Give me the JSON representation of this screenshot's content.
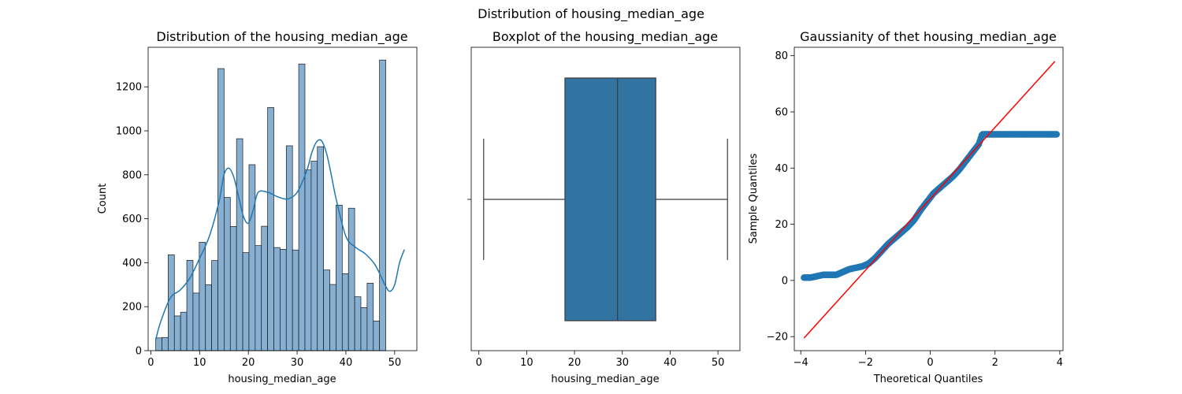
{
  "figure": {
    "title": "Distribution of housing_median_age"
  },
  "colors": {
    "bar": "#86afd2",
    "kde": "#1f77b4",
    "box": "#3274a1",
    "qq_points": "#1f77b4",
    "qq_line": "#ff0000"
  },
  "chart_data": [
    {
      "type": "bar",
      "subtype": "histogram",
      "title": "Distribution of the housing_median_age",
      "xlabel": "housing_median_age",
      "ylabel": "Count",
      "xlim": [
        -0.55,
        54.55
      ],
      "ylim": [
        0,
        1380
      ],
      "xticks": [
        0,
        10,
        20,
        30,
        40,
        50
      ],
      "yticks": [
        0,
        200,
        400,
        600,
        800,
        1000,
        1200
      ],
      "bin_start": 1,
      "bin_width": 1.275,
      "values": [
        58,
        60,
        436,
        158,
        175,
        411,
        262,
        493,
        300,
        410,
        1283,
        697,
        565,
        964,
        446,
        846,
        478,
        566,
        1106,
        469,
        461,
        932,
        458,
        1304,
        822,
        862,
        928,
        367,
        301,
        662,
        350,
        648,
        245,
        196,
        307,
        135,
        1322
      ],
      "kde": {
        "x": [
          1,
          2,
          4,
          6,
          8,
          10,
          12,
          14,
          15,
          16,
          17,
          18,
          19,
          20,
          21,
          22,
          24,
          26,
          28,
          30,
          32,
          33,
          34,
          35,
          36,
          37,
          38,
          40,
          42,
          44,
          46,
          48,
          49,
          50,
          51,
          52
        ],
        "y": [
          50,
          130,
          240,
          275,
          330,
          420,
          520,
          680,
          800,
          830,
          790,
          700,
          610,
          580,
          640,
          720,
          720,
          700,
          690,
          720,
          820,
          900,
          950,
          955,
          900,
          800,
          690,
          520,
          470,
          440,
          390,
          300,
          270,
          300,
          400,
          460
        ]
      }
    },
    {
      "type": "box",
      "title": "Boxplot of the housing_median_age",
      "xlabel": "housing_median_age",
      "xlim": [
        -1.6,
        54.6
      ],
      "xticks": [
        0,
        10,
        20,
        30,
        40,
        50
      ],
      "whisker_low": 1,
      "q1": 18,
      "median": 29,
      "q3": 37,
      "whisker_high": 52
    },
    {
      "type": "scatter",
      "subtype": "qq-plot",
      "title": "Gaussianity of thet  housing_median_age",
      "xlabel": "Theoretical Quantiles",
      "ylabel": "Sample Quantiles",
      "xlim": [
        -4.2,
        4.1
      ],
      "ylim": [
        -25,
        83
      ],
      "xticks": [
        -4,
        -2,
        0,
        2,
        4
      ],
      "yticks": [
        -20,
        0,
        20,
        40,
        60,
        80
      ],
      "points": {
        "x": [
          -3.9,
          -3.7,
          -3.5,
          -3.3,
          -3.1,
          -2.9,
          -2.7,
          -2.5,
          -2.3,
          -2.1,
          -1.9,
          -1.7,
          -1.5,
          -1.3,
          -1.1,
          -0.9,
          -0.7,
          -0.5,
          -0.3,
          -0.1,
          0.1,
          0.3,
          0.5,
          0.7,
          0.9,
          1.1,
          1.3,
          1.5,
          1.6,
          2.0,
          2.5,
          3.0,
          3.5,
          3.9
        ],
        "y": [
          1,
          1,
          1.5,
          2,
          2,
          2,
          3,
          4,
          4.5,
          5,
          6,
          8,
          10.5,
          13,
          15,
          17,
          19,
          21.5,
          25,
          28,
          31,
          33,
          35,
          37,
          39.5,
          42.5,
          45.5,
          48.5,
          52,
          52,
          52,
          52,
          52,
          52
        ]
      },
      "reference_line": {
        "x": [
          -3.9,
          3.85
        ],
        "y": [
          -20.5,
          78
        ]
      }
    }
  ]
}
